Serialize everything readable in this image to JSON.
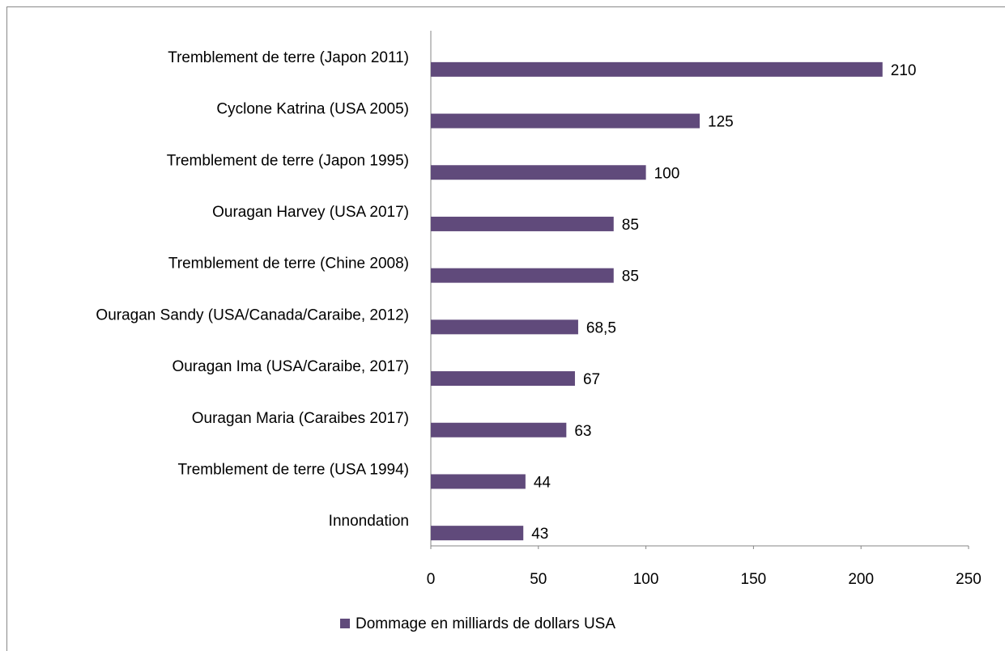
{
  "chart_data": {
    "type": "barh",
    "categories": [
      "Tremblement de terre (Japon 2011)",
      "Cyclone Katrina (USA 2005)",
      "Tremblement de terre (Japon 1995)",
      "Ouragan Harvey (USA 2017)",
      "Tremblement de terre (Chine 2008)",
      "Ouragan Sandy (USA/Canada/Caraibe, 2012)",
      "Ouragan Ima (USA/Caraibe, 2017)",
      "Ouragan Maria (Caraibes 2017)",
      "Tremblement de terre (USA 1994)",
      "Innondation"
    ],
    "series": [
      {
        "name": "Dommage en milliards de dollars USA",
        "color": "#604a7b",
        "values": [
          210,
          125,
          100,
          85,
          85,
          68.5,
          67,
          63,
          44,
          43
        ],
        "value_labels": [
          "210",
          "125",
          "100",
          "85",
          "85",
          "68,5",
          "67",
          "63",
          "44",
          "43"
        ]
      }
    ],
    "xlim": [
      0,
      250
    ],
    "xticks": [
      0,
      50,
      100,
      150,
      200,
      250
    ],
    "grid": false,
    "legend": "bottom"
  }
}
